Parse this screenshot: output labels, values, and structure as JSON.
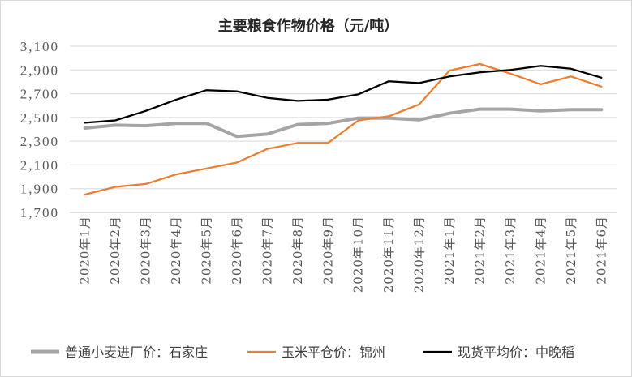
{
  "chart_data": {
    "type": "line",
    "title": "主要粮食作物价格（元/吨）",
    "xlabel": "",
    "ylabel": "",
    "ylim": [
      1700,
      3100
    ],
    "yticks": [
      1700,
      1900,
      2100,
      2300,
      2500,
      2700,
      2900,
      3100
    ],
    "ytick_labels": [
      "1,700",
      "1,900",
      "2,100",
      "2,300",
      "2,500",
      "2,700",
      "2,900",
      "3,100"
    ],
    "categories": [
      "2020年1月",
      "2020年2月",
      "2020年3月",
      "2020年4月",
      "2020年5月",
      "2020年6月",
      "2020年7月",
      "2020年8月",
      "2020年9月",
      "2020年10月",
      "2020年11月",
      "2020年12月",
      "2021年1月",
      "2021年2月",
      "2021年3月",
      "2021年4月",
      "2021年5月",
      "2021年6月"
    ],
    "grid": true,
    "legend_position": "bottom",
    "series": [
      {
        "name": "普通小麦进厂价：石家庄",
        "color": "#a5a5a5",
        "values": [
          2410,
          2435,
          2430,
          2450,
          2450,
          2340,
          2360,
          2440,
          2450,
          2495,
          2495,
          2480,
          2535,
          2570,
          2570,
          2555,
          2565,
          2565
        ]
      },
      {
        "name": "玉米平仓价：锦州",
        "color": "#ed7d31",
        "values": [
          1850,
          1915,
          1940,
          2020,
          2070,
          2120,
          2235,
          2285,
          2285,
          2475,
          2510,
          2610,
          2895,
          2950,
          2870,
          2780,
          2845,
          2760
        ]
      },
      {
        "name": "现货平均价：中晚稻",
        "color": "#000000",
        "values": [
          2455,
          2475,
          2555,
          2650,
          2730,
          2720,
          2665,
          2640,
          2650,
          2695,
          2805,
          2790,
          2845,
          2880,
          2900,
          2935,
          2910,
          2835
        ]
      }
    ]
  }
}
